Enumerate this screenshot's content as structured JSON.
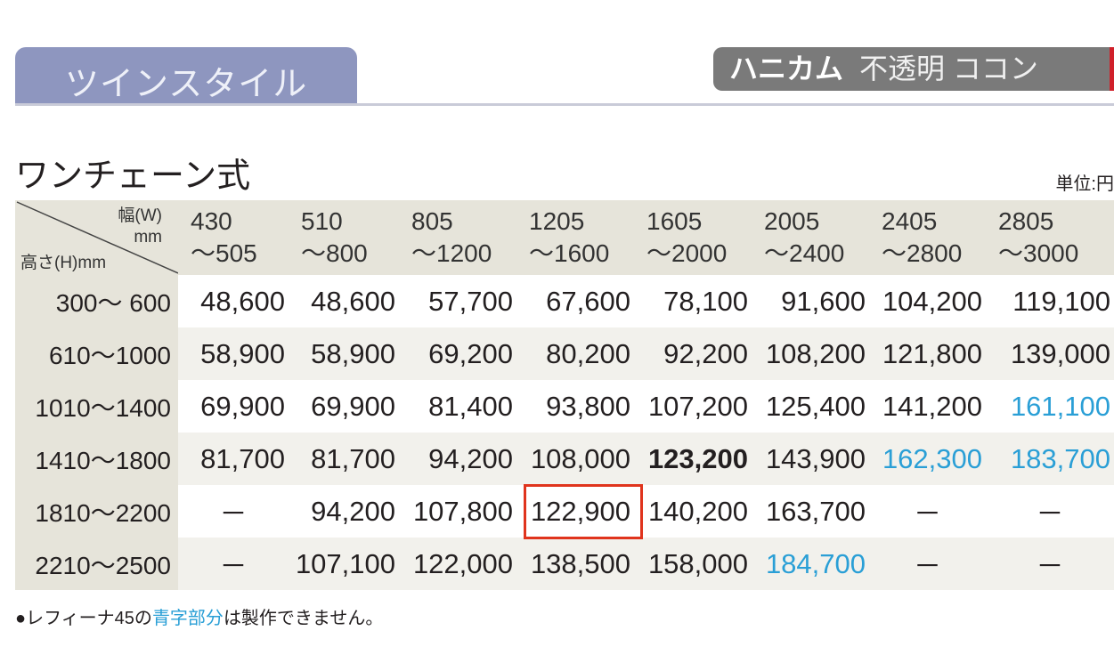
{
  "tab_label": "ツインスタイル",
  "badge": {
    "bold": "ハニカム",
    "rest": "不透明 ココン"
  },
  "section_title": "ワンチェーン式",
  "unit": "単位:円",
  "corner": {
    "width_label": "幅(W)",
    "width_unit": "mm",
    "height_label": "高さ(H)mm"
  },
  "columns": [
    {
      "from": "430",
      "to": "～505"
    },
    {
      "from": "510",
      "to": "～800"
    },
    {
      "from": "805",
      "to": "～1200"
    },
    {
      "from": "1205",
      "to": "～1600"
    },
    {
      "from": "1605",
      "to": "～2000"
    },
    {
      "from": "2005",
      "to": "～2400"
    },
    {
      "from": "2405",
      "to": "～2800"
    },
    {
      "from": "2805",
      "to": "～3000"
    }
  ],
  "rows": [
    {
      "label": "300～ 600",
      "cells": [
        "48,600",
        "48,600",
        "57,700",
        "67,600",
        "78,100",
        "91,600",
        "104,200",
        "119,100"
      ]
    },
    {
      "label": "610～1000",
      "cells": [
        "58,900",
        "58,900",
        "69,200",
        "80,200",
        "92,200",
        "108,200",
        "121,800",
        "139,000"
      ]
    },
    {
      "label": "1010～1400",
      "cells": [
        "69,900",
        "69,900",
        "81,400",
        "93,800",
        "107,200",
        "125,400",
        "141,200",
        "161,100"
      ]
    },
    {
      "label": "1410～1800",
      "cells": [
        "81,700",
        "81,700",
        "94,200",
        "108,000",
        "123,200",
        "143,900",
        "162,300",
        "183,700"
      ]
    },
    {
      "label": "1810～2200",
      "cells": [
        "－",
        "94,200",
        "107,800",
        "122,900",
        "140,200",
        "163,700",
        "－",
        "－"
      ]
    },
    {
      "label": "2210～2500",
      "cells": [
        "－",
        "107,100",
        "122,000",
        "138,500",
        "158,000",
        "184,700",
        "－",
        "－"
      ]
    }
  ],
  "blue_cells": [
    [
      2,
      7
    ],
    [
      3,
      6
    ],
    [
      3,
      7
    ],
    [
      5,
      5
    ]
  ],
  "bold_cells": [
    [
      3,
      4
    ]
  ],
  "highlighted_cell": [
    4,
    3
  ],
  "colors": {
    "blue": "#2a9fd6",
    "highlight": "#e0341d",
    "tab": "#8e96bf",
    "header_bg": "#e6e4da"
  },
  "note": {
    "prefix": "●レフィーナ45の",
    "blue": "青字部分",
    "suffix": "は製作できません。"
  }
}
